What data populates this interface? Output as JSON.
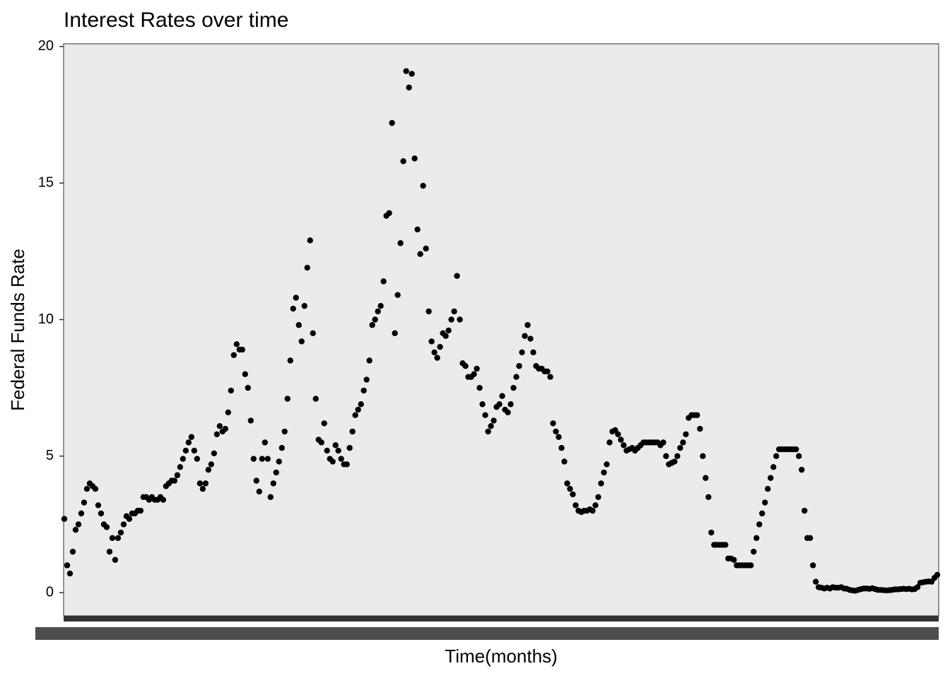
{
  "chart_data": {
    "type": "scatter",
    "title": "Interest Rates over time",
    "x_label": "Time(months)",
    "y_label": "Federal Funds Rate",
    "color": "#000000",
    "ylim": [
      -0.85,
      20.1
    ],
    "yticks": [
      0,
      5,
      10,
      15,
      20
    ],
    "grid": false,
    "values": [
      2.7,
      1.0,
      0.7,
      1.5,
      2.3,
      2.5,
      2.9,
      3.3,
      3.8,
      4.0,
      3.9,
      3.8,
      3.2,
      2.9,
      2.5,
      2.4,
      1.5,
      2.0,
      1.2,
      2.0,
      2.2,
      2.5,
      2.8,
      2.7,
      2.9,
      2.9,
      3.0,
      3.0,
      3.5,
      3.5,
      3.4,
      3.5,
      3.4,
      3.4,
      3.5,
      3.4,
      3.9,
      4.0,
      4.1,
      4.1,
      4.3,
      4.6,
      4.9,
      5.2,
      5.5,
      5.7,
      5.2,
      4.9,
      4.0,
      3.8,
      4.0,
      4.5,
      4.7,
      5.1,
      5.8,
      6.1,
      5.9,
      6.0,
      6.6,
      7.4,
      8.7,
      9.1,
      8.9,
      8.9,
      8.0,
      7.5,
      6.3,
      4.9,
      4.1,
      3.7,
      4.9,
      5.5,
      4.9,
      3.5,
      4.0,
      4.4,
      4.8,
      5.3,
      5.9,
      7.1,
      8.5,
      10.4,
      10.8,
      9.8,
      9.2,
      10.5,
      11.9,
      12.9,
      9.5,
      7.1,
      5.6,
      5.5,
      6.2,
      5.2,
      4.9,
      4.8,
      5.4,
      5.2,
      4.9,
      4.7,
      4.7,
      5.3,
      5.9,
      6.5,
      6.7,
      6.9,
      7.4,
      7.8,
      8.5,
      9.8,
      10.0,
      10.3,
      10.5,
      11.4,
      13.8,
      13.9,
      17.2,
      9.5,
      10.9,
      12.8,
      15.8,
      19.1,
      18.5,
      19.0,
      15.9,
      13.3,
      12.4,
      14.9,
      12.6,
      10.3,
      9.2,
      8.8,
      8.6,
      9.0,
      9.5,
      9.4,
      9.6,
      10.0,
      10.3,
      11.6,
      10.0,
      8.4,
      8.3,
      7.9,
      7.9,
      8.0,
      8.2,
      7.5,
      6.9,
      6.5,
      5.9,
      6.1,
      6.3,
      6.8,
      6.9,
      7.2,
      6.7,
      6.6,
      6.9,
      7.5,
      7.9,
      8.3,
      8.8,
      9.4,
      9.8,
      9.3,
      8.8,
      8.3,
      8.2,
      8.2,
      8.1,
      8.1,
      7.9,
      6.2,
      5.9,
      5.7,
      5.3,
      4.8,
      4.0,
      3.8,
      3.6,
      3.2,
      3.0,
      2.95,
      3.0,
      3.0,
      3.05,
      3.0,
      3.2,
      3.5,
      4.0,
      4.4,
      4.7,
      5.5,
      5.9,
      5.95,
      5.8,
      5.6,
      5.4,
      5.2,
      5.25,
      5.3,
      5.2,
      5.3,
      5.4,
      5.5,
      5.5,
      5.5,
      5.5,
      5.5,
      5.5,
      5.4,
      5.5,
      5.0,
      4.7,
      4.75,
      4.8,
      5.0,
      5.3,
      5.5,
      5.8,
      6.4,
      6.5,
      6.5,
      6.5,
      6.0,
      5.0,
      4.2,
      3.5,
      2.2,
      1.75,
      1.75,
      1.75,
      1.75,
      1.75,
      1.25,
      1.25,
      1.2,
      1.0,
      1.0,
      1.0,
      1.0,
      1.0,
      1.0,
      1.5,
      2.0,
      2.5,
      2.9,
      3.3,
      3.8,
      4.2,
      4.6,
      5.0,
      5.25,
      5.25,
      5.25,
      5.25,
      5.25,
      5.25,
      5.25,
      5.0,
      4.5,
      3.0,
      2.0,
      2.0,
      1.0,
      0.4,
      0.2,
      0.18,
      0.15,
      0.18,
      0.15,
      0.2,
      0.18,
      0.18,
      0.2,
      0.15,
      0.14,
      0.1,
      0.08,
      0.07,
      0.1,
      0.13,
      0.15,
      0.15,
      0.14,
      0.16,
      0.13,
      0.1,
      0.1,
      0.09,
      0.08,
      0.09,
      0.1,
      0.12,
      0.12,
      0.13,
      0.14,
      0.13,
      0.14,
      0.12,
      0.13,
      0.2,
      0.36,
      0.38,
      0.4,
      0.41,
      0.4,
      0.54,
      0.65
    ]
  }
}
